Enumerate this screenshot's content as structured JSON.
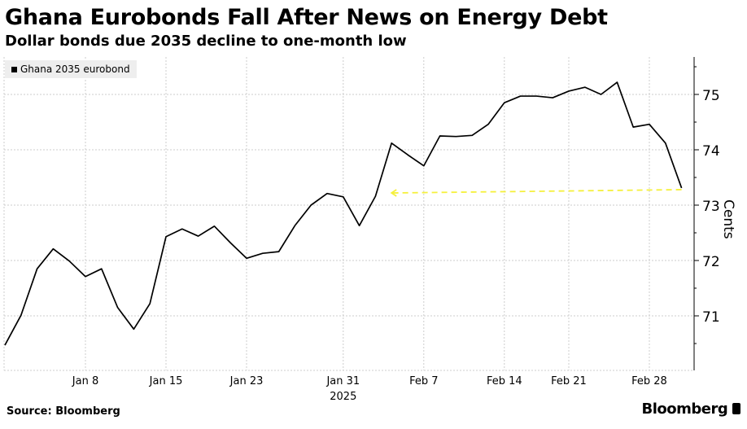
{
  "chart_data": {
    "type": "line",
    "title": "Ghana Eurobonds Fall After News on Energy Debt",
    "subtitle": "Dollar bonds due 2035 decline to one-month low",
    "ylabel": "Cents",
    "xlabel": "2025",
    "ylim": [
      70,
      75.7
    ],
    "yticks": [
      71,
      72,
      73,
      74,
      75
    ],
    "xticks": [
      {
        "label": "Jan 8",
        "index": 5
      },
      {
        "label": "Jan 15",
        "index": 10
      },
      {
        "label": "Jan 23",
        "index": 15
      },
      {
        "label": "Jan 31",
        "index": 21
      },
      {
        "label": "Feb 7",
        "index": 26
      },
      {
        "label": "Feb 14",
        "index": 31
      },
      {
        "label": "Feb 21",
        "index": 35
      },
      {
        "label": "Feb 28",
        "index": 40
      }
    ],
    "grid": true,
    "legend_position": "top-left",
    "series": [
      {
        "name": "Ghana 2035 eurobond",
        "color": "#000000",
        "values": [
          70.47,
          71.01,
          71.85,
          72.21,
          71.99,
          71.71,
          71.85,
          71.15,
          70.76,
          71.22,
          72.43,
          72.57,
          72.44,
          72.62,
          72.32,
          72.04,
          72.13,
          72.16,
          72.63,
          73.0,
          73.21,
          73.15,
          72.63,
          73.16,
          74.12,
          73.91,
          73.71,
          74.25,
          74.24,
          74.26,
          74.46,
          74.85,
          74.97,
          74.97,
          74.94,
          75.06,
          75.13,
          75.0,
          75.22,
          74.41,
          74.46,
          74.12,
          73.31
        ]
      }
    ],
    "annotation": {
      "type": "dashed-arrow",
      "color": "#f5f03c",
      "from": {
        "index": 42,
        "value": 73.28
      },
      "to": {
        "index": 24,
        "value": 73.22
      }
    }
  },
  "source": "Source: Bloomberg",
  "brand": "Bloomberg"
}
